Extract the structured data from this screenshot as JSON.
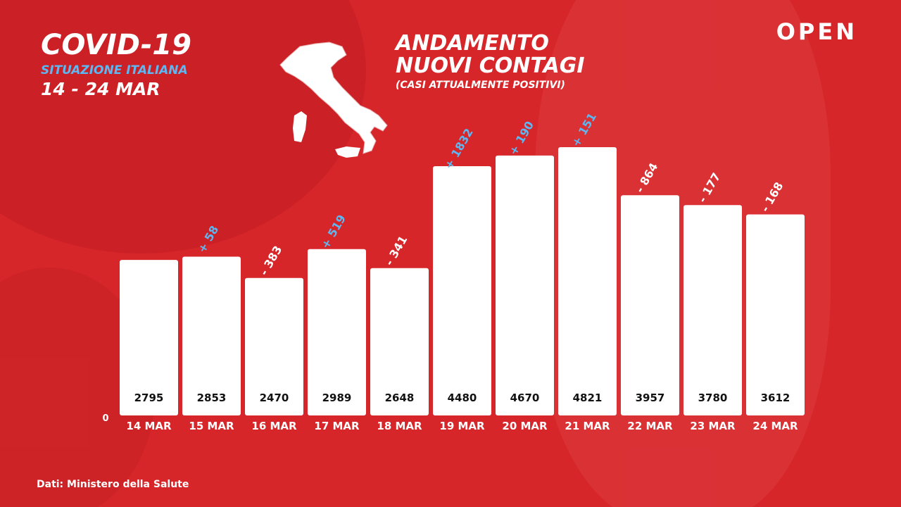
{
  "header": {
    "title": "COVID-19",
    "subtitle": "SITUAZIONE ITALIANA",
    "date_range": "14 - 24 MAR"
  },
  "chart_title": {
    "line1": "ANDAMENTO",
    "line2": "NUOVI CONTAGI",
    "note": "(CASI ATTUALMENTE POSITIVI)"
  },
  "logo": "OPEN",
  "source": "Dati: Ministero della Salute",
  "colors": {
    "background": "#d7262a",
    "bar": "#ffffff",
    "value_text": "#111111",
    "positive_change": "#5cb7f2",
    "negative_change": "#ffffff"
  },
  "chart_data": {
    "type": "bar",
    "title": "ANDAMENTO NUOVI CONTAGI",
    "subtitle": "(CASI ATTUALMENTE POSITIVI)",
    "categories": [
      "14 MAR",
      "15 MAR",
      "16 MAR",
      "17 MAR",
      "18 MAR",
      "19 MAR",
      "20 MAR",
      "21 MAR",
      "22 MAR",
      "23 MAR",
      "24 MAR"
    ],
    "values": [
      2795,
      2853,
      2470,
      2989,
      2648,
      4480,
      4670,
      4821,
      3957,
      3780,
      3612
    ],
    "changes": [
      "",
      "+ 58",
      "- 383",
      "+ 519",
      "- 341",
      "+ 1832",
      "+ 190",
      "+ 151",
      "- 864",
      "- 177",
      "- 168"
    ],
    "y_zero_label": "0",
    "ylim": [
      0,
      4821
    ],
    "grid": false,
    "legend": "none"
  }
}
